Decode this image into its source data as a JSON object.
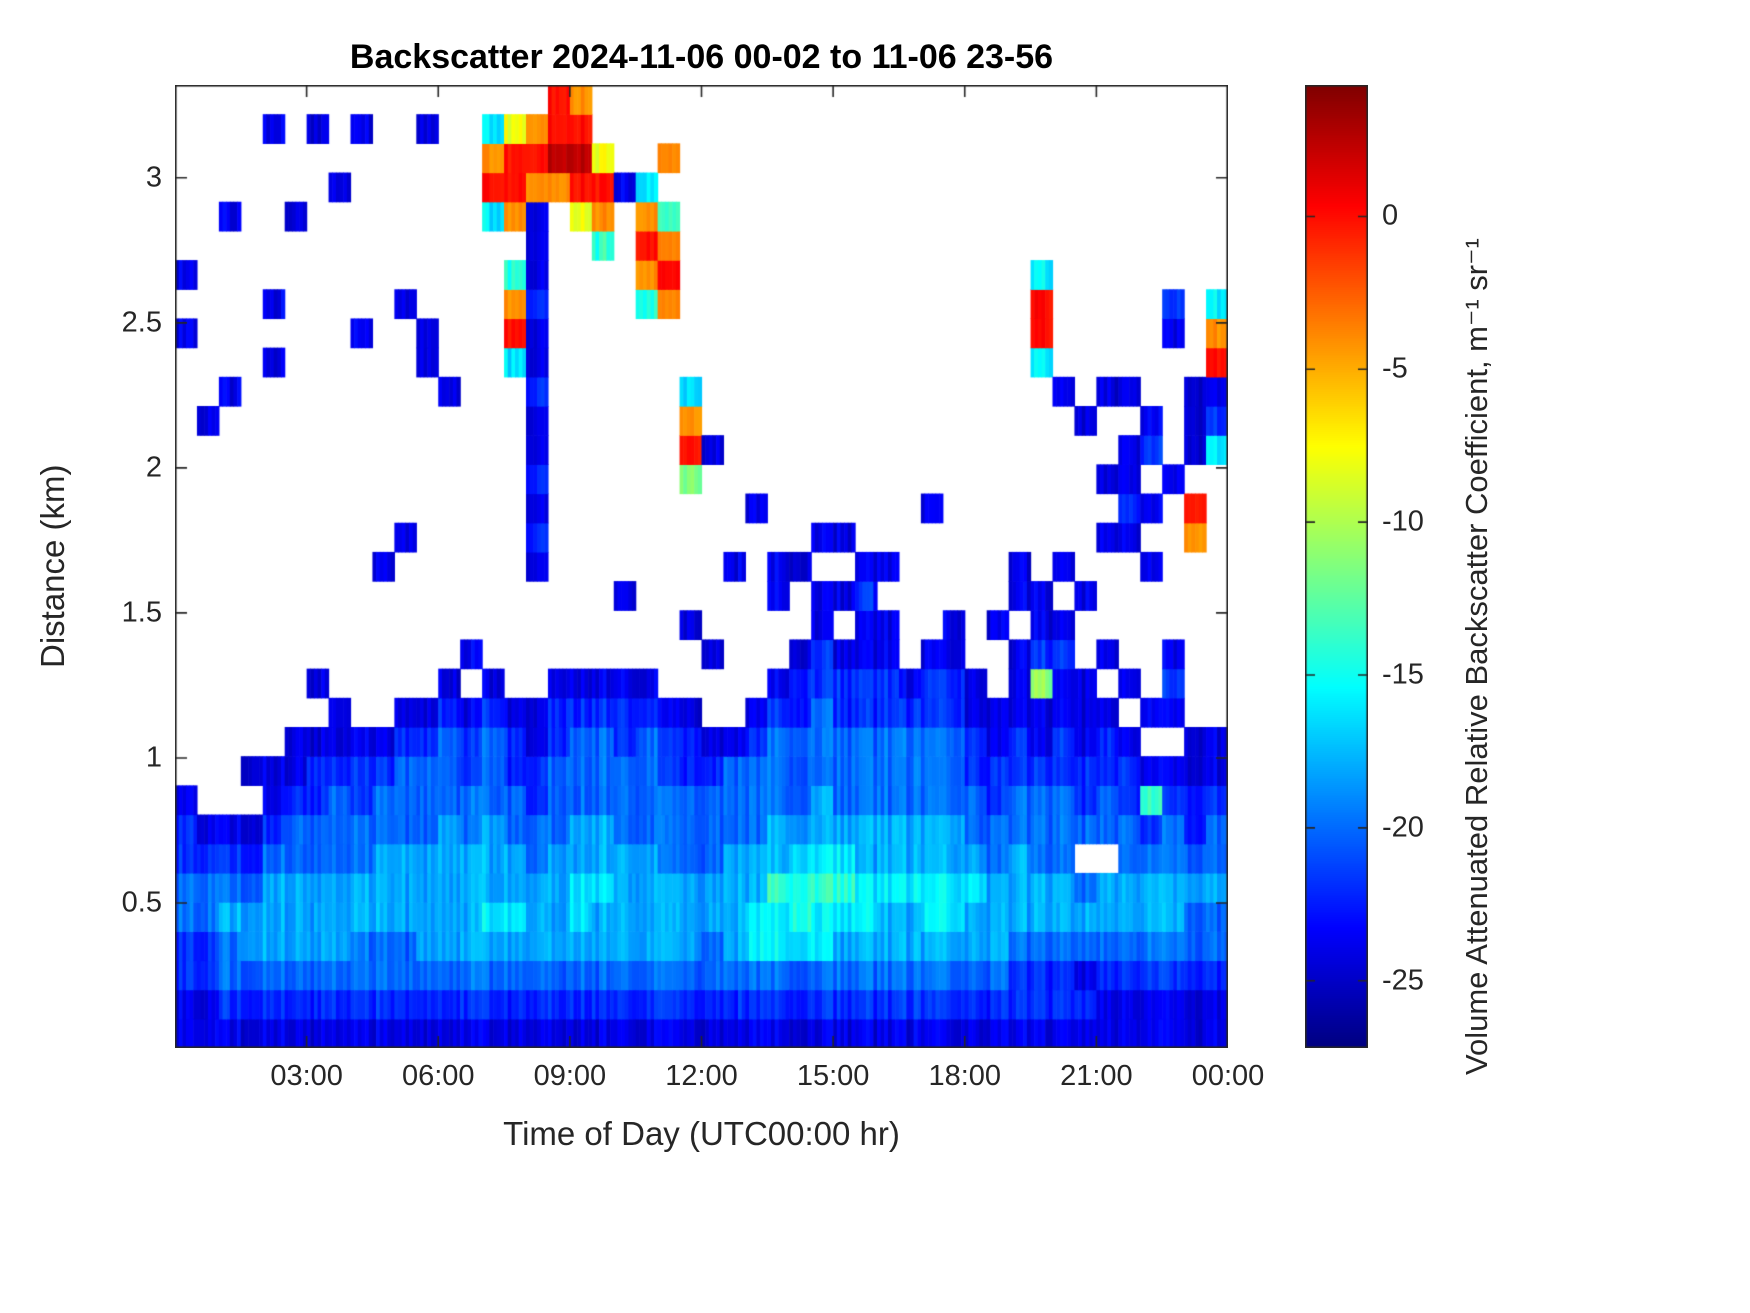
{
  "title": "Backscatter 2024-11-06 00-02 to 11-06 23-56",
  "axes": {
    "xlabel": "Time of Day (UTC00:00 hr)",
    "ylabel": "Distance (km)",
    "x_tick_labels": [
      "03:00",
      "06:00",
      "09:00",
      "12:00",
      "15:00",
      "18:00",
      "21:00",
      "00:00"
    ],
    "x_tick_hours": [
      3,
      6,
      9,
      12,
      15,
      18,
      21,
      24
    ],
    "x_range_hours": [
      0,
      24
    ],
    "y_tick_labels": [
      "0.5",
      "1",
      "1.5",
      "2",
      "2.5",
      "3"
    ],
    "y_tick_values": [
      0.5,
      1,
      1.5,
      2,
      2.5,
      3
    ],
    "y_range_km": [
      0,
      3.32
    ]
  },
  "colorbar": {
    "label": "Volume Attenuated Relative Backscatter Coefficient, m⁻¹ sr⁻¹",
    "tick_labels": [
      "0",
      "-5",
      "-10",
      "-15",
      "-20",
      "-25"
    ],
    "tick_values": [
      0,
      -5,
      -10,
      -15,
      -20,
      -25
    ],
    "range": [
      -27.2,
      4.3
    ],
    "colormap": "jet"
  },
  "chart_data": {
    "type": "heatmap",
    "title": "Backscatter 2024-11-06 00-02 to 11-06 23-56",
    "x_units": "hours UTC",
    "y_units": "km",
    "value_units": "volume attenuated relative backscatter coefficient (colorbar scale)",
    "x_hours_start": 0.0,
    "x_hours_step": 0.5,
    "y_km_start": 0.05,
    "y_km_step": 0.1,
    "no_data": ".",
    "encoding_legend": {
      ".": null,
      "a": -26,
      "b": -24,
      "c": -22,
      "d": -20,
      "e": -18,
      "f": -16,
      "g": -14,
      "h": -11,
      "i": -8,
      "j": -4,
      "k": 0,
      "l": 2.5
    },
    "columns_bottom_to_top": [
      "bbccddccb...............b.b......",
      "bbccddcb.............b...........",
      "bcddedcb..............b.....b....",
      "bcdeedcb.b.......................",
      "bcdeeedcbb.............b.b.....b.",
      "bcdeeeddcbb.................b....",
      "bcdeeeddccb.b..................b.",
      "bcdeeedddcbb.................b...",
      "bcddeeddccb.............b......b.",
      "bcddeeeddcb.....b................",
      "bcddeeedddcb.....b.......b.......",
      "bcdeeeedddcb...........bb......b.",
      "bcdeeeeedddcb.........b..........",
      "bcdeeeeddccb.b...................",
      "bcdefeeedddcb...............fkjf.",
      "bcdefeeddccb...........fkjg.jkki.",
      "bcdeeeddccbb....bcbcbbcbbcbbbjkj.",
      "bcdeeeedddccb................jlkk",
      "bcdeffeedddcb...............iklkj",
      "bcdeefeedddcb..............gjki..",
      "bcdeeeedddccb..b.............b...",
      "bcdeeeeddddcb............gjkjf...",
      "bcdeeedddccb.............jkjg.j..",
      "bcdeeedddccb..b....hkjf..........",
      "bcddeedddcb..b......b............",
      "bcdeeeedddb.....b................",
      "bcdffeedddcb......b..............",
      "bcdffgeedddcb..bb................",
      "bcdfggfedddccb..b................",
      "bcdffgfeedddccbb.b...............",
      "bcdefgfedddccb.b.b...............",
      "bcdeffeedddccbbcb................",
      "bcdeefeedddccbb.b................",
      "bcdeefeedddcb....................",
      "bcdeffeedddccb....b..............",
      "bcdeffeedddccbb..................",
      "bcdeefeddccbb....................",
      "bcdeeeddccbb..b..................",
      "bccdeeeddccbbb.bb................",
      "bccdeedddcbbhcbb.......fkkf......",
      "bccdeedddccbbcb.b.....b..........",
      "bcbded.dccbbb..b.....b...........",
      "bbcdee.ddccb.b...b.b..b..........",
      "bbcdeeddccb.b....bcbb.b..........",
      "bbcdeedcgb.b....b.b.cb...........",
      "bbcdeeddcb.bcb.....b....bc.......",
      "bbcddedccbb......jk.bbb..........",
      "bbcddeddcbb.........fcbkjf......."
    ]
  }
}
